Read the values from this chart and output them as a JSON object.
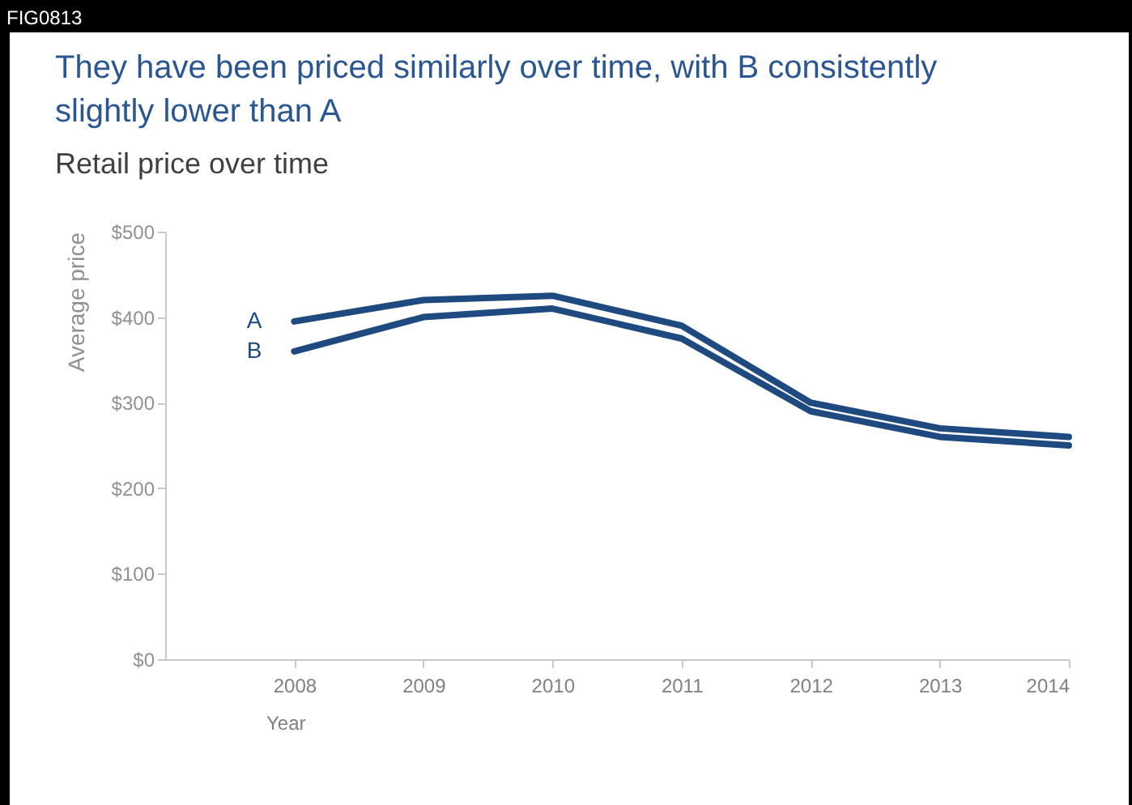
{
  "chart_data": {
    "type": "line",
    "title": "They have been priced similarly over time, with B consistently slightly lower than A",
    "subtitle": "Retail price over time",
    "xlabel": "Year",
    "ylabel": "Average price",
    "annotations": [
      "FIG0813"
    ],
    "x": [
      2008,
      2009,
      2010,
      2011,
      2012,
      2013,
      2014
    ],
    "series": [
      {
        "name": "A",
        "color": "#1f4a80",
        "values": [
          395,
          420,
          425,
          390,
          300,
          270,
          260
        ]
      },
      {
        "name": "B",
        "color": "#1f4a80",
        "values": [
          360,
          400,
          410,
          375,
          290,
          260,
          250
        ]
      }
    ],
    "xlim": [
      2007,
      2014
    ],
    "xticks": [
      2008,
      2009,
      2010,
      2011,
      2012,
      2013,
      2014
    ],
    "ylim": [
      0,
      500
    ],
    "yticks": [
      {
        "value": 0,
        "label": "$0"
      },
      {
        "value": 100,
        "label": "$100"
      },
      {
        "value": 200,
        "label": "$200"
      },
      {
        "value": 300,
        "label": "$300"
      },
      {
        "value": 400,
        "label": "$400"
      },
      {
        "value": 500,
        "label": "$500"
      }
    ],
    "grid": false,
    "legend": false,
    "marker": "none",
    "line_style": "solid"
  }
}
